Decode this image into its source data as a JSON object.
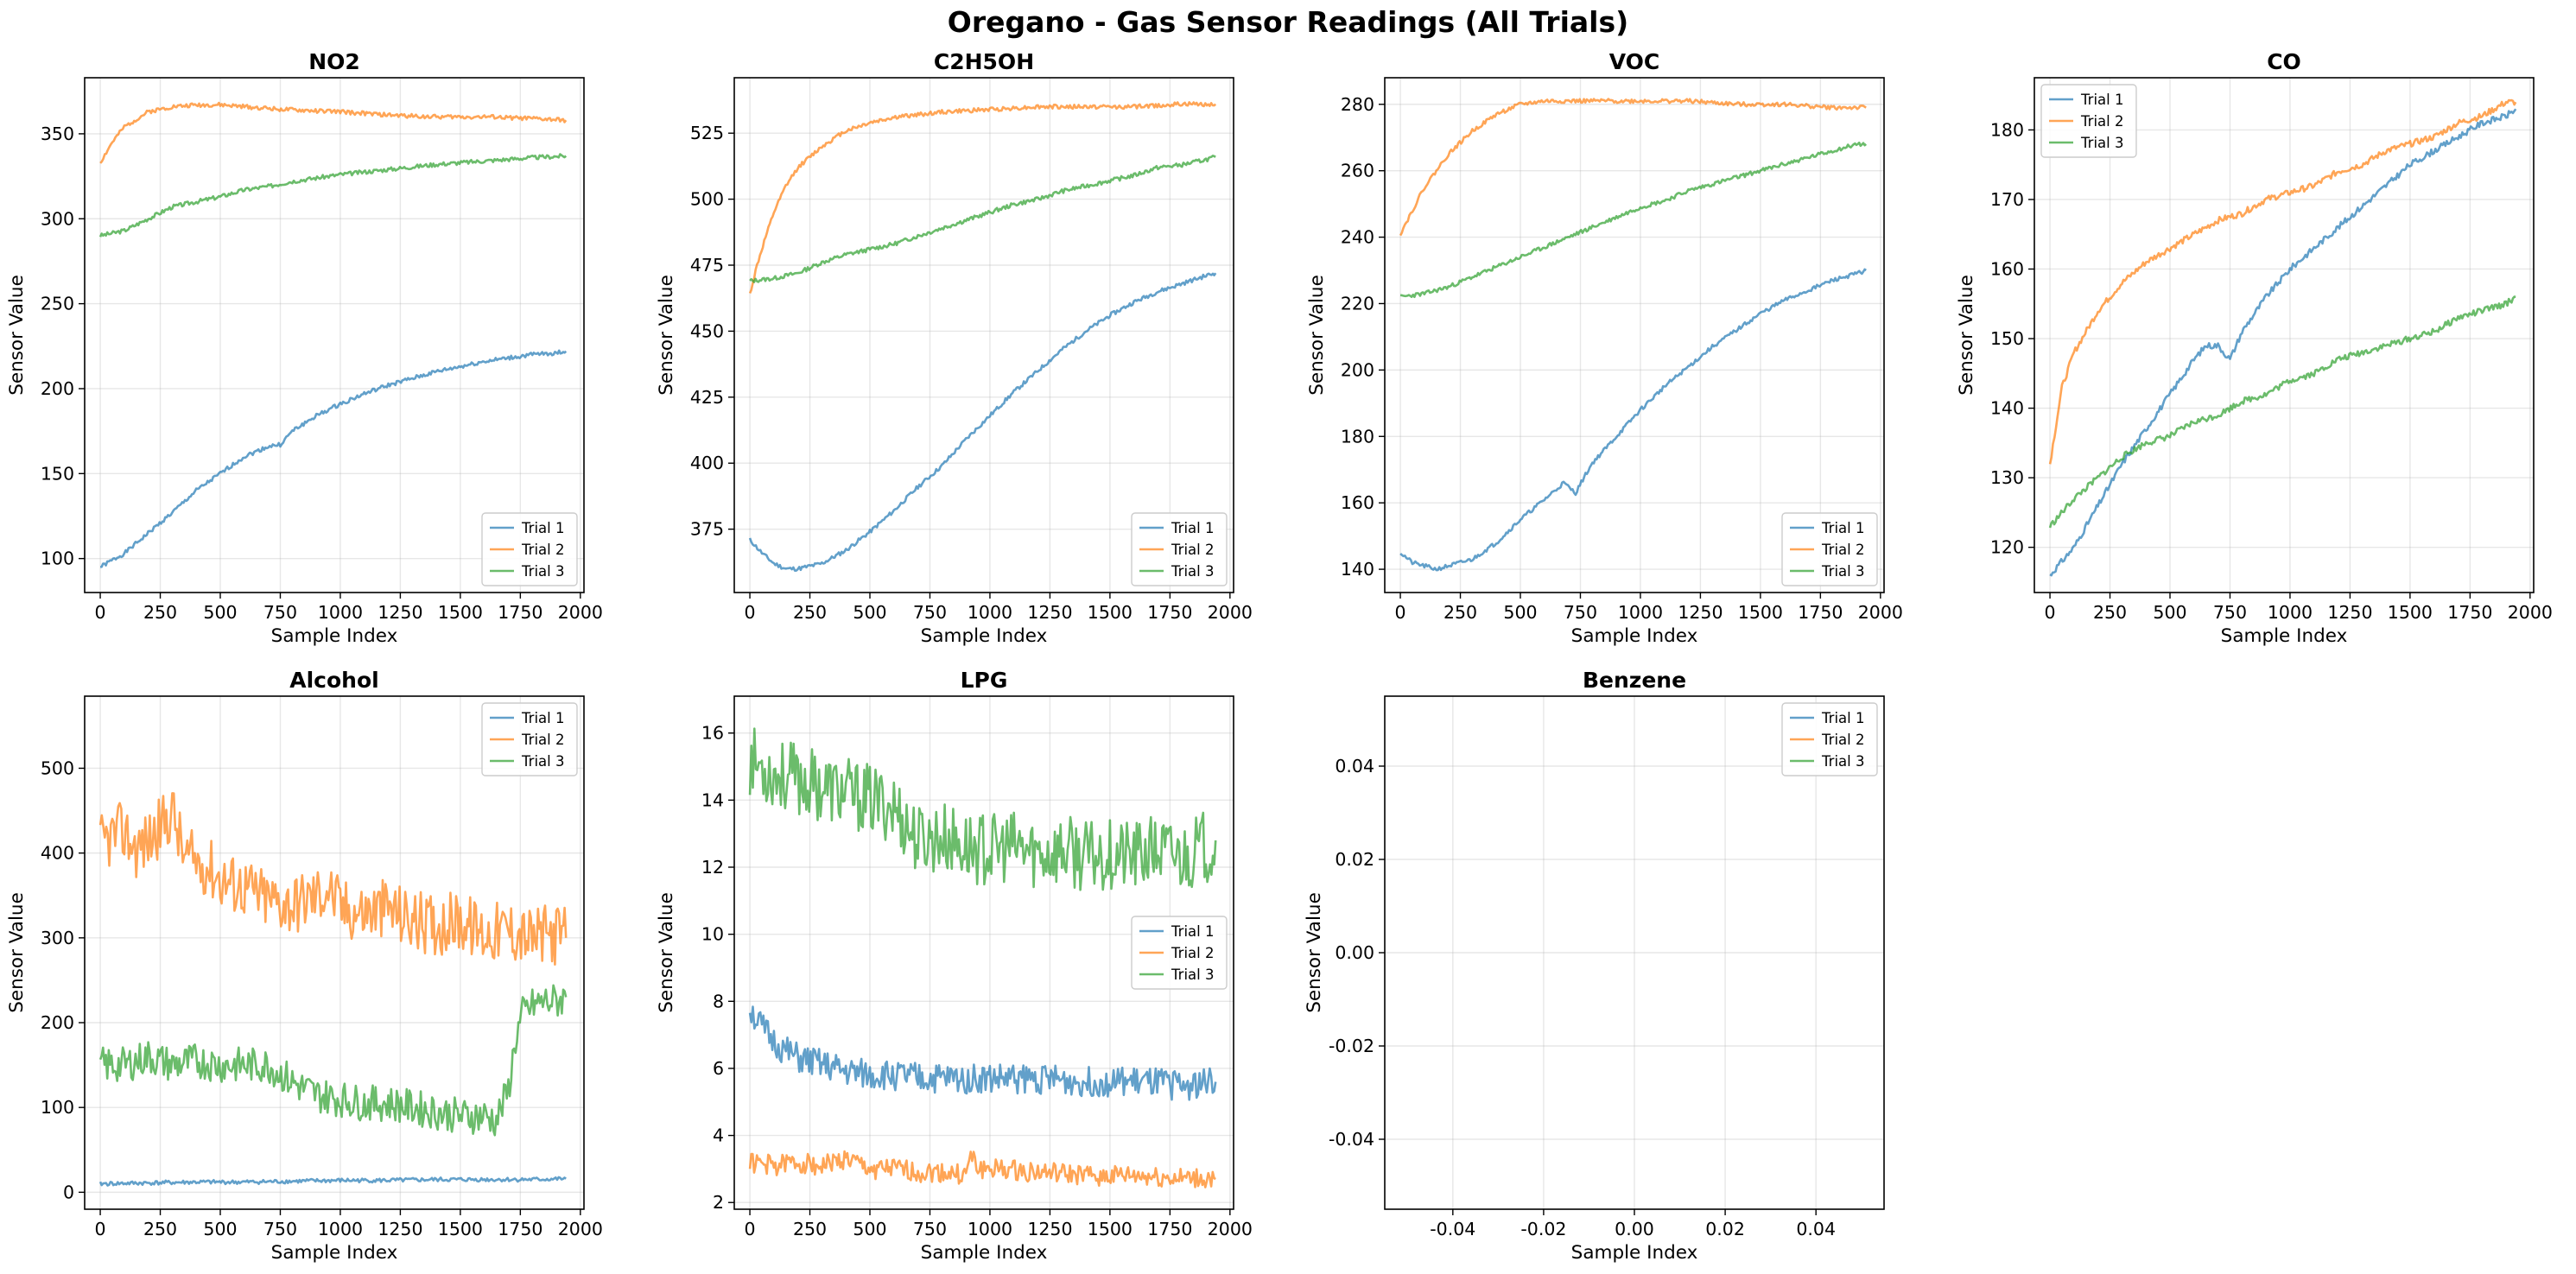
{
  "figure": {
    "title": "Oregano - Gas Sensor Readings (All Trials)"
  },
  "colors": {
    "trial1": "#1f77b4",
    "trial2": "#ff7f0e",
    "trial3": "#2ca02c"
  },
  "chart_data": [
    {
      "type": "line",
      "title": "NO2",
      "xlabel": "Sample Index",
      "ylabel": "Sensor Value",
      "xlim": [
        -65,
        2015
      ],
      "ylim": [
        80,
        383
      ],
      "xticks": [
        0,
        250,
        500,
        750,
        1000,
        1250,
        1500,
        1750,
        2000
      ],
      "yticks": [
        100,
        150,
        200,
        250,
        300,
        350
      ],
      "legend": "lower-right",
      "grid": true,
      "series": [
        {
          "name": "Trial 1",
          "x": [
            0,
            100,
            200,
            300,
            400,
            500,
            600,
            700,
            750,
            800,
            900,
            1000,
            1100,
            1200,
            1300,
            1400,
            1500,
            1600,
            1700,
            1800,
            1900,
            1940
          ],
          "y": [
            95,
            103,
            115,
            127,
            140,
            150,
            160,
            166,
            167,
            175,
            184,
            191,
            197,
            202,
            206,
            210,
            213,
            216,
            218,
            220,
            221,
            222
          ]
        },
        {
          "name": "Trial 2",
          "x": [
            0,
            50,
            100,
            200,
            300,
            400,
            500,
            600,
            700,
            800,
            1000,
            1200,
            1400,
            1600,
            1800,
            1940
          ],
          "y": [
            333,
            345,
            354,
            363,
            366,
            367,
            367,
            366,
            365,
            364,
            363,
            361,
            360,
            360,
            359,
            358
          ]
        },
        {
          "name": "Trial 3",
          "x": [
            0,
            100,
            200,
            300,
            400,
            500,
            600,
            700,
            800,
            1000,
            1200,
            1400,
            1600,
            1800,
            1940
          ],
          "y": [
            290,
            293,
            300,
            307,
            310,
            313,
            317,
            319,
            322,
            326,
            329,
            332,
            334,
            336,
            337
          ]
        }
      ]
    },
    {
      "type": "line",
      "title": "C2H5OH",
      "xlabel": "Sample Index",
      "ylabel": "Sensor Value",
      "xlim": [
        -65,
        2015
      ],
      "ylim": [
        351,
        546
      ],
      "xticks": [
        0,
        250,
        500,
        750,
        1000,
        1250,
        1500,
        1750,
        2000
      ],
      "yticks": [
        375,
        400,
        425,
        450,
        475,
        500,
        525
      ],
      "legend": "lower-right",
      "grid": true,
      "series": [
        {
          "name": "Trial 1",
          "x": [
            0,
            50,
            100,
            150,
            200,
            300,
            400,
            500,
            600,
            700,
            800,
            900,
            1000,
            1100,
            1200,
            1300,
            1400,
            1500,
            1600,
            1700,
            1800,
            1900,
            1940
          ],
          "y": [
            371,
            366,
            362,
            360,
            360,
            362,
            367,
            374,
            382,
            391,
            399,
            409,
            418,
            427,
            435,
            443,
            450,
            456,
            461,
            465,
            468,
            471,
            472
          ]
        },
        {
          "name": "Trial 2",
          "x": [
            0,
            30,
            60,
            100,
            150,
            200,
            300,
            400,
            500,
            600,
            700,
            800,
            1000,
            1200,
            1400,
            1600,
            1800,
            1940
          ],
          "y": [
            464,
            475,
            484,
            495,
            505,
            512,
            520,
            526,
            529,
            531,
            532,
            533,
            534,
            535,
            535,
            535,
            536,
            536
          ]
        },
        {
          "name": "Trial 3",
          "x": [
            0,
            100,
            200,
            300,
            400,
            500,
            600,
            700,
            800,
            900,
            1000,
            1100,
            1200,
            1300,
            1400,
            1500,
            1600,
            1700,
            1800,
            1900,
            1940
          ],
          "y": [
            469,
            470,
            472,
            476,
            479,
            481,
            483,
            486,
            489,
            492,
            495,
            498,
            500,
            503,
            505,
            507,
            509,
            512,
            513,
            515,
            516
          ]
        }
      ]
    },
    {
      "type": "line",
      "title": "VOC",
      "xlabel": "Sample Index",
      "ylabel": "Sensor Value",
      "xlim": [
        -65,
        2015
      ],
      "ylim": [
        133,
        288
      ],
      "xticks": [
        0,
        250,
        500,
        750,
        1000,
        1250,
        1500,
        1750,
        2000
      ],
      "yticks": [
        140,
        160,
        180,
        200,
        220,
        240,
        260,
        280
      ],
      "legend": "lower-right",
      "grid": true,
      "series": [
        {
          "name": "Trial 1",
          "x": [
            0,
            50,
            100,
            150,
            200,
            300,
            400,
            500,
            600,
            680,
            730,
            760,
            800,
            900,
            1000,
            1100,
            1200,
            1300,
            1400,
            1500,
            1600,
            1700,
            1800,
            1900,
            1940
          ],
          "y": [
            145,
            142,
            141,
            140,
            141,
            143,
            148,
            155,
            161,
            166,
            163,
            167,
            172,
            180,
            188,
            195,
            201,
            207,
            212,
            217,
            221,
            224,
            227,
            229,
            230
          ]
        },
        {
          "name": "Trial 2",
          "x": [
            0,
            50,
            100,
            150,
            200,
            300,
            400,
            500,
            600,
            700,
            800,
            1000,
            1200,
            1400,
            1600,
            1800,
            1940
          ],
          "y": [
            241,
            248,
            255,
            260,
            265,
            272,
            277,
            280,
            281,
            281,
            281,
            281,
            281,
            280,
            280,
            279,
            279
          ]
        },
        {
          "name": "Trial 3",
          "x": [
            0,
            100,
            200,
            300,
            400,
            500,
            600,
            700,
            800,
            900,
            1000,
            1100,
            1200,
            1300,
            1400,
            1500,
            1600,
            1700,
            1800,
            1900,
            1940
          ],
          "y": [
            222,
            223,
            225,
            228,
            231,
            234,
            237,
            240,
            243,
            246,
            249,
            251,
            254,
            256,
            258,
            260,
            262,
            264,
            266,
            268,
            268
          ]
        }
      ]
    },
    {
      "type": "line",
      "title": "CO",
      "xlabel": "Sample Index",
      "ylabel": "Sensor Value",
      "xlim": [
        -65,
        2015
      ],
      "ylim": [
        113.5,
        187.5
      ],
      "xticks": [
        0,
        250,
        500,
        750,
        1000,
        1250,
        1500,
        1750,
        2000
      ],
      "yticks": [
        120,
        130,
        140,
        150,
        160,
        170,
        180
      ],
      "legend": "upper-left",
      "grid": true,
      "series": [
        {
          "name": "Trial 1",
          "x": [
            0,
            100,
            200,
            300,
            400,
            500,
            600,
            650,
            700,
            750,
            800,
            900,
            1000,
            1100,
            1200,
            1300,
            1400,
            1500,
            1600,
            1700,
            1800,
            1900,
            1940
          ],
          "y": [
            116,
            120,
            126,
            132,
            137,
            142,
            147,
            149,
            149,
            147,
            151,
            156,
            160,
            163,
            166,
            169,
            172,
            175,
            177,
            179,
            181,
            182,
            183
          ]
        },
        {
          "name": "Trial 2",
          "x": [
            0,
            50,
            100,
            200,
            300,
            400,
            500,
            600,
            700,
            800,
            900,
            1000,
            1100,
            1200,
            1300,
            1400,
            1500,
            1600,
            1700,
            1800,
            1900,
            1940
          ],
          "y": [
            132,
            143,
            148,
            154,
            158,
            161,
            163,
            165,
            167,
            168,
            170,
            171,
            172,
            174,
            175,
            177,
            178,
            179,
            181,
            182,
            184,
            184
          ]
        },
        {
          "name": "Trial 3",
          "x": [
            0,
            100,
            200,
            300,
            400,
            500,
            600,
            700,
            800,
            900,
            1000,
            1100,
            1200,
            1300,
            1400,
            1500,
            1600,
            1700,
            1800,
            1900,
            1940
          ],
          "y": [
            123,
            127,
            130,
            133,
            135,
            136,
            138,
            139,
            141,
            142,
            144,
            145,
            147,
            148,
            149,
            150,
            151,
            153,
            154,
            155,
            156
          ]
        }
      ]
    },
    {
      "type": "line",
      "title": "Alcohol",
      "xlabel": "Sample Index",
      "ylabel": "Sensor Value",
      "xlim": [
        -65,
        2015
      ],
      "ylim": [
        -20,
        585
      ],
      "xticks": [
        0,
        250,
        500,
        750,
        1000,
        1250,
        1500,
        1750,
        2000
      ],
      "yticks": [
        0,
        100,
        200,
        300,
        400,
        500
      ],
      "legend": "upper-right",
      "grid": true,
      "series": [
        {
          "name": "Trial 1",
          "x": [
            0,
            200,
            400,
            600,
            800,
            1000,
            1200,
            1400,
            1600,
            1800,
            1940
          ],
          "y": [
            10,
            11,
            12,
            12,
            13,
            14,
            14,
            15,
            15,
            15,
            16
          ]
        },
        {
          "name": "Trial 2",
          "x": [
            0,
            50,
            100,
            150,
            200,
            250,
            300,
            350,
            400,
            450,
            500,
            600,
            700,
            800,
            900,
            950,
            1000,
            1100,
            1200,
            1300,
            1400,
            1500,
            1600,
            1700,
            1800,
            1900,
            1940
          ],
          "y": [
            410,
            420,
            425,
            405,
            415,
            430,
            450,
            395,
            390,
            385,
            370,
            360,
            345,
            340,
            350,
            360,
            335,
            330,
            335,
            320,
            315,
            320,
            305,
            310,
            300,
            305,
            300
          ]
        },
        {
          "name": "Trial 3",
          "x": [
            0,
            100,
            200,
            300,
            400,
            500,
            600,
            700,
            800,
            900,
            1000,
            1100,
            1200,
            1300,
            1400,
            1500,
            1600,
            1650,
            1700,
            1730,
            1760,
            1800,
            1850,
            1900,
            1940
          ],
          "y": [
            150,
            150,
            160,
            150,
            155,
            150,
            150,
            150,
            130,
            115,
            110,
            105,
            105,
            100,
            95,
            90,
            90,
            85,
            120,
            180,
            210,
            220,
            225,
            225,
            230
          ]
        }
      ]
    },
    {
      "type": "line",
      "title": "LPG",
      "xlabel": "Sample Index",
      "ylabel": "Sensor Value",
      "xlim": [
        -65,
        2015
      ],
      "ylim": [
        1.8,
        17.1
      ],
      "xticks": [
        0,
        250,
        500,
        750,
        1000,
        1250,
        1500,
        1750,
        2000
      ],
      "yticks": [
        2,
        4,
        6,
        8,
        10,
        12,
        14,
        16
      ],
      "legend": "center-right",
      "grid": true,
      "series": [
        {
          "name": "Trial 1",
          "x": [
            0,
            50,
            100,
            150,
            200,
            300,
            400,
            500,
            600,
            700,
            800,
            1000,
            1200,
            1400,
            1600,
            1800,
            1940
          ],
          "y": [
            7.8,
            7.2,
            6.8,
            6.5,
            6.3,
            6.1,
            5.9,
            5.8,
            5.8,
            5.7,
            5.7,
            5.7,
            5.7,
            5.6,
            5.6,
            5.5,
            5.6
          ]
        },
        {
          "name": "Trial 2",
          "x": [
            0,
            100,
            200,
            300,
            400,
            500,
            600,
            700,
            800,
            900,
            920,
            950,
            1000,
            1200,
            1400,
            1600,
            1800,
            1940
          ],
          "y": [
            3.2,
            3.1,
            3.2,
            3.1,
            3.3,
            3.0,
            3.0,
            2.9,
            2.9,
            2.8,
            3.4,
            3.0,
            3.0,
            2.9,
            2.8,
            2.8,
            2.7,
            2.7
          ]
        },
        {
          "name": "Trial 3",
          "x": [
            0,
            50,
            100,
            200,
            300,
            400,
            500,
            600,
            700,
            800,
            900,
            1000,
            1100,
            1200,
            1300,
            1400,
            1500,
            1600,
            1700,
            1800,
            1900,
            1940
          ],
          "y": [
            15.2,
            15.0,
            14.8,
            14.6,
            14.4,
            14.2,
            14.0,
            13.8,
            12.8,
            12.9,
            12.6,
            12.5,
            12.6,
            12.4,
            12.5,
            12.3,
            12.4,
            12.3,
            12.5,
            12.3,
            12.6,
            12.8
          ]
        }
      ]
    },
    {
      "type": "line",
      "title": "Benzene",
      "xlabel": "Sample Index",
      "ylabel": "Sensor Value",
      "xlim": [
        -0.055,
        0.055
      ],
      "ylim": [
        -0.055,
        0.055
      ],
      "xticks": [
        -0.04,
        -0.02,
        0.0,
        0.02,
        0.04
      ],
      "yticks": [
        -0.04,
        -0.02,
        0.0,
        0.02,
        0.04
      ],
      "legend": "upper-right",
      "grid": true,
      "series": [
        {
          "name": "Trial 1",
          "x": [],
          "y": []
        },
        {
          "name": "Trial 2",
          "x": [],
          "y": []
        },
        {
          "name": "Trial 3",
          "x": [],
          "y": []
        }
      ]
    }
  ]
}
